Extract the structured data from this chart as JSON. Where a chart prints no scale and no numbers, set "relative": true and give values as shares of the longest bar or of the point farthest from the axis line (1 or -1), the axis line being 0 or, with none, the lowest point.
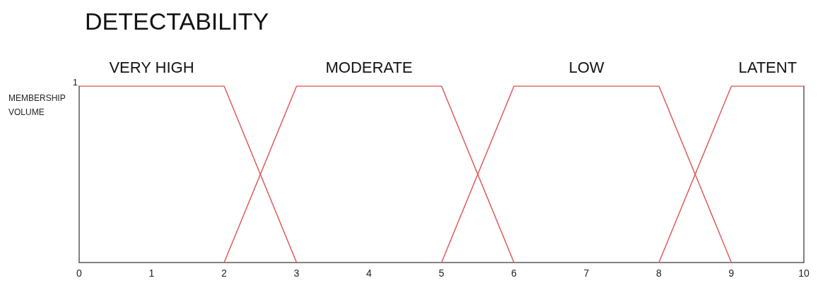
{
  "chart_data": {
    "type": "line",
    "title": "DETECTABILITY",
    "ylabel": "MEMBERSHIP VOLUME",
    "xlim": [
      0,
      10
    ],
    "xticks": [
      0,
      1,
      2,
      3,
      4,
      5,
      6,
      7,
      8,
      9,
      10
    ],
    "relative": true,
    "annotations": [
      "1"
    ],
    "grid": false,
    "legend": false,
    "marker": "none",
    "line_style": "solid",
    "series": [
      {
        "name": "VERY HIGH",
        "color": "#e05a5a",
        "x": [
          0,
          2,
          3
        ],
        "values": [
          1,
          1,
          0
        ]
      },
      {
        "name": "MODERATE",
        "color": "#e05a5a",
        "x": [
          2,
          3,
          5,
          6
        ],
        "values": [
          0,
          1,
          1,
          0
        ]
      },
      {
        "name": "LOW",
        "color": "#e05a5a",
        "x": [
          5,
          6,
          8,
          9
        ],
        "values": [
          0,
          1,
          1,
          0
        ]
      },
      {
        "name": "LATENT",
        "color": "#e05a5a",
        "x": [
          8,
          9,
          10
        ],
        "values": [
          0,
          1,
          1
        ]
      }
    ]
  }
}
